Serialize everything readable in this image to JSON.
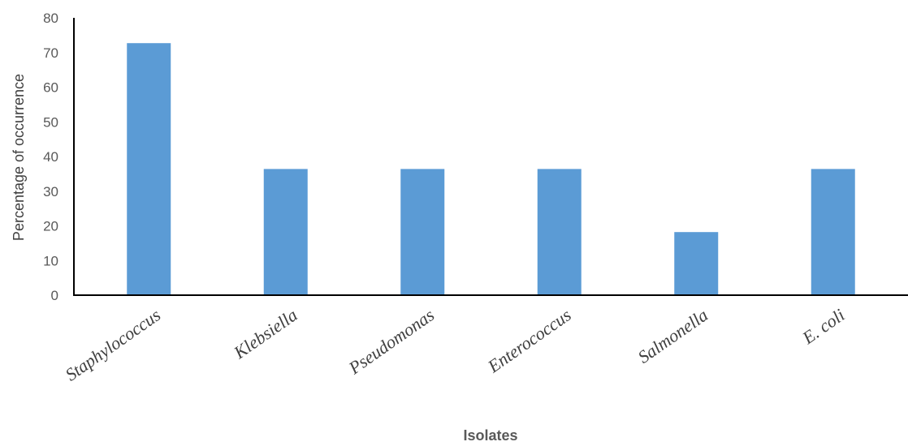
{
  "chart_data": {
    "type": "bar",
    "categories": [
      "Staphylococcus",
      "Klebsiella",
      "Pseudomonas",
      "Enterococcus",
      "Salmonella",
      "E. coli"
    ],
    "values": [
      72.7,
      36.4,
      36.4,
      36.4,
      18.2,
      36.4
    ],
    "xlabel": "Isolates",
    "ylabel": "Percentage of occurrence",
    "ylim": [
      0,
      80
    ],
    "yticks": [
      "0",
      "10",
      "20",
      "30",
      "40",
      "50",
      "60",
      "70",
      "80"
    ],
    "grid": false,
    "legend": "none",
    "bar_color": "#5b9bd5"
  }
}
